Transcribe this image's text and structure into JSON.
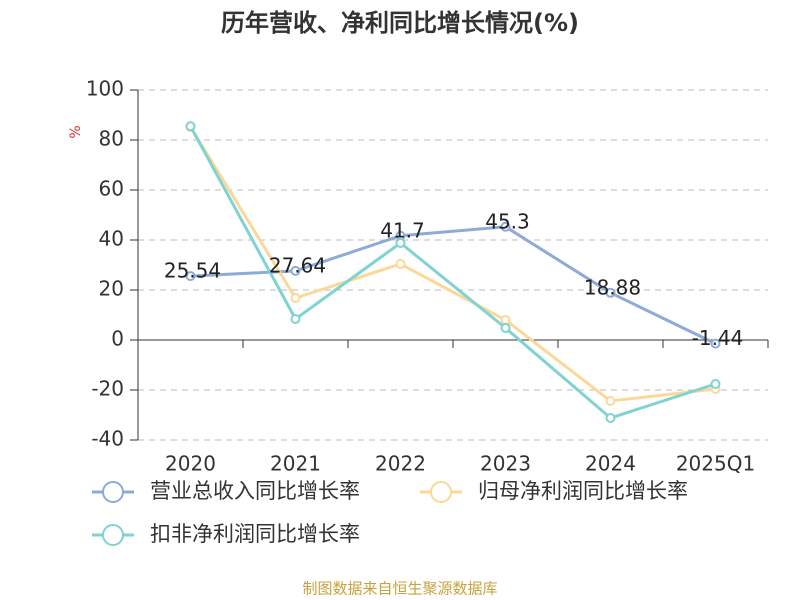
{
  "chart_data": {
    "type": "line",
    "title": "历年营收、净利同比增长情况(%)",
    "y_label": "%",
    "categories": [
      "2020",
      "2021",
      "2022",
      "2023",
      "2024",
      "2025Q1"
    ],
    "series": [
      {
        "name": "营业总收入同比增长率",
        "color": "#8eaad8",
        "values": [
          25.54,
          27.64,
          41.7,
          45.3,
          18.88,
          -1.44
        ],
        "labels": true
      },
      {
        "name": "归母净利润同比增长率",
        "color": "#fcd898",
        "values": [
          85.2,
          16.8,
          30.4,
          8,
          -24.4,
          -19.6
        ]
      },
      {
        "name": "扣非净利润同比增长率",
        "color": "#7fd3d0",
        "values": [
          85.5,
          8.4,
          38.8,
          4.8,
          -31.2,
          -17.6
        ]
      }
    ],
    "ylim": [
      -40,
      100
    ],
    "yticks": [
      -40,
      -20,
      0,
      20,
      40,
      60,
      80,
      100
    ],
    "grid": true,
    "source": "制图数据来自恒生聚源数据库"
  }
}
